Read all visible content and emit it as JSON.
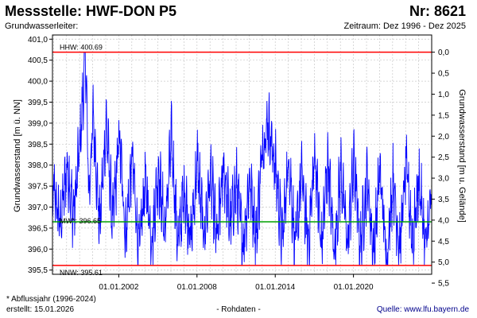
{
  "header": {
    "title": "Messstelle: HWF-DON P5",
    "number": "Nr: 8621",
    "aquifer": "Grundwasserleiter:",
    "period": "Zeitraum: Dez 1996 - Dez 2025"
  },
  "footer": {
    "footnote": "* Abflussjahr (1996-2024)",
    "created": "erstellt:  15.01.2026",
    "data_kind": "- Rohdaten -",
    "source": "Quelle: www.lfu.bayern.de"
  },
  "chart_data": {
    "type": "line",
    "ylabel": "Grundwasserstand [m ü. NN]",
    "y2label": "Grundwasserstand [m u. Gelände]",
    "ylim": [
      395.4,
      401.1
    ],
    "y_ticks": [
      "395,5",
      "396,0",
      "396,5",
      "397,0",
      "397,5",
      "398,0",
      "398,5",
      "399,0",
      "399,5",
      "400,0",
      "400,5",
      "401,0"
    ],
    "y_tick_values": [
      395.5,
      396.0,
      396.5,
      397.0,
      397.5,
      398.0,
      398.5,
      399.0,
      399.5,
      400.0,
      400.5,
      401.0
    ],
    "y2_ticks": [
      "0,0",
      "0,5",
      "1,0",
      "1,5",
      "2,0",
      "2,5",
      "3,0",
      "3,5",
      "4,0",
      "4,5",
      "5,0",
      "5,5"
    ],
    "y2_tick_values": [
      0.0,
      0.5,
      1.0,
      1.5,
      2.0,
      2.5,
      3.0,
      3.5,
      4.0,
      4.5,
      5.0,
      5.5
    ],
    "y2_zero_at": 400.69,
    "x_range": [
      "1996-12-01",
      "2025-12-31"
    ],
    "x_ticks": [
      "01.01.2002",
      "01.01.2008",
      "01.01.2014",
      "01.01.2020"
    ],
    "x_tick_dates": [
      "2002-01-01",
      "2008-01-01",
      "2014-01-01",
      "2020-01-01"
    ],
    "grid": true,
    "series_color": "#0000ff",
    "reference_lines": [
      {
        "label": "HHW: 400.69",
        "value": 400.69,
        "color": "#ff0000"
      },
      {
        "label": "MW*: 396.65",
        "value": 396.65,
        "color": "#00a000"
      },
      {
        "label": "NNW: 395.61",
        "value": 395.61,
        "color": "#ff0000"
      }
    ],
    "series": [
      {
        "x": [
          "1997-01",
          "1997-07",
          "1998-01",
          "1998-07",
          "1999-01",
          "1999-06",
          "1999-09",
          "2000-01",
          "2000-07",
          "2001-01",
          "2001-07",
          "2002-01",
          "2002-07",
          "2003-01",
          "2003-07",
          "2004-01",
          "2004-07",
          "2005-01",
          "2005-07",
          "2006-01",
          "2006-07",
          "2007-01",
          "2007-07",
          "2008-01",
          "2008-07",
          "2009-01",
          "2009-07",
          "2010-01",
          "2010-07",
          "2011-01",
          "2011-07",
          "2012-01",
          "2012-07",
          "2013-01",
          "2013-06",
          "2014-01",
          "2014-07",
          "2015-01",
          "2015-07",
          "2016-01",
          "2016-07",
          "2017-01",
          "2017-07",
          "2018-01",
          "2018-07",
          "2019-01",
          "2019-07",
          "2020-01",
          "2020-07",
          "2021-01",
          "2021-07",
          "2022-01",
          "2022-07",
          "2023-01",
          "2023-07",
          "2024-01",
          "2024-07",
          "2025-01",
          "2025-07",
          "2025-12"
        ],
        "values": [
          397.3,
          396.6,
          398.0,
          396.8,
          398.5,
          400.69,
          397.2,
          399.2,
          396.5,
          399.0,
          396.6,
          398.7,
          396.3,
          398.2,
          395.9,
          397.6,
          396.2,
          397.9,
          396.4,
          398.6,
          396.1,
          397.4,
          396.2,
          398.1,
          396.3,
          397.8,
          396.2,
          398.0,
          396.6,
          397.5,
          396.1,
          397.7,
          396.3,
          398.5,
          399.0,
          397.9,
          396.2,
          398.2,
          396.0,
          397.8,
          396.1,
          398.3,
          396.0,
          398.1,
          395.9,
          397.9,
          396.1,
          398.1,
          396.0,
          397.7,
          395.9,
          397.9,
          395.7,
          397.7,
          396.0,
          398.0,
          396.2,
          397.6,
          396.0,
          397.2
        ]
      }
    ]
  }
}
